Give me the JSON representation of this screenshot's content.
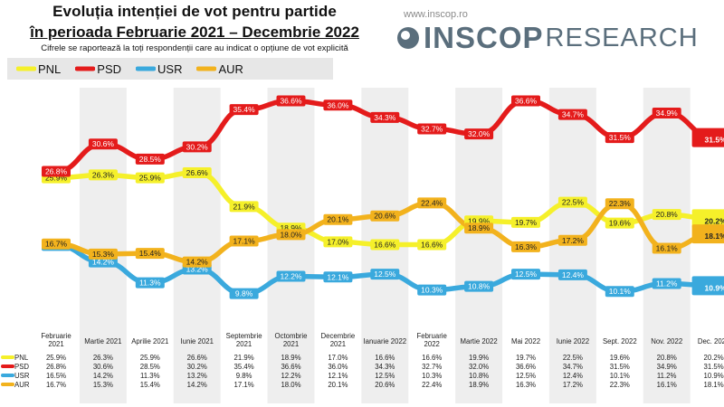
{
  "header": {
    "title_line1": "Evoluția intenției de vot pentru partide",
    "title_line2": "în perioada Februarie 2021 – Decembrie 2022",
    "subtitle": "Cifrele se raportează la toți respondenții care au indicat o opțiune de vot explicită",
    "url": "www.inscop.ro",
    "logo_main": "INSCOP",
    "logo_sub": "RESEARCH",
    "logo_icon": "inscop-circle-logo-icon"
  },
  "colors": {
    "PNL": "#f5f02a",
    "PSD": "#e41b1b",
    "USR": "#3aa9dd",
    "AUR": "#f2b21d"
  },
  "chart_data": {
    "type": "line",
    "categories": [
      "Februarie 2021",
      "Martie 2021",
      "Aprilie 2021",
      "Iunie 2021",
      "Septembrie 2021",
      "Octombrie 2021",
      "Decembrie 2021",
      "Ianuarie 2022",
      "Februarie 2022",
      "Martie 2022",
      "Mai 2022",
      "Iunie 2022",
      "Sept. 2022",
      "Nov. 2022",
      "Dec. 2022"
    ],
    "category_lines": [
      [
        "Februarie",
        "2021"
      ],
      [
        "Martie 2021"
      ],
      [
        "Aprilie 2021"
      ],
      [
        "Iunie 2021"
      ],
      [
        "Septembrie",
        "2021"
      ],
      [
        "Octombrie",
        "2021"
      ],
      [
        "Decembrie",
        "2021"
      ],
      [
        "Ianuarie 2022"
      ],
      [
        "Februarie",
        "2022"
      ],
      [
        "Martie 2022"
      ],
      [
        "Mai 2022"
      ],
      [
        "Iunie 2022"
      ],
      [
        "Sept. 2022"
      ],
      [
        "Nov. 2022"
      ],
      [
        "Dec. 2022"
      ]
    ],
    "series": [
      {
        "name": "PNL",
        "values": [
          25.9,
          26.3,
          25.9,
          26.6,
          21.9,
          18.9,
          17.0,
          16.6,
          16.6,
          19.9,
          19.7,
          22.5,
          19.6,
          20.8,
          20.2
        ]
      },
      {
        "name": "PSD",
        "values": [
          26.8,
          30.6,
          28.5,
          30.2,
          35.4,
          36.6,
          36.0,
          34.3,
          32.7,
          32.0,
          36.6,
          34.7,
          31.5,
          34.9,
          31.5
        ]
      },
      {
        "name": "USR",
        "values": [
          16.5,
          14.2,
          11.3,
          13.2,
          9.8,
          12.2,
          12.1,
          12.5,
          10.3,
          10.8,
          12.5,
          12.4,
          10.1,
          11.2,
          10.9
        ]
      },
      {
        "name": "AUR",
        "values": [
          16.7,
          15.3,
          15.4,
          14.2,
          17.1,
          18.0,
          20.1,
          20.6,
          22.4,
          18.9,
          16.3,
          17.2,
          22.3,
          16.1,
          18.1
        ]
      }
    ],
    "value_labels": {
      "PNL": [
        "25.9%",
        "26.3%",
        "25.9%",
        "26.6%",
        "21.9%",
        "18.9%",
        "17.0%",
        "16.6%",
        "16.6%",
        "19.9%",
        "19.7%",
        "22.5%",
        "19.6%",
        "20.8%",
        "20.2%"
      ],
      "PSD": [
        "26.8%",
        "30.6%",
        "28.5%",
        "30.2%",
        "35.4%",
        "36.6%",
        "36.0%",
        "34.3%",
        "32.7%",
        "32.0%",
        "36.6%",
        "34.7%",
        "31.5%",
        "34.9%",
        "31.5%"
      ],
      "USR": [
        "16.5%",
        "14.2%",
        "11.3%",
        "13.2%",
        "9.8%",
        "12.2%",
        "12.1%",
        "12.5%",
        "10.3%",
        "10.8%",
        "12.5%",
        "12.4%",
        "10.1%",
        "11.2%",
        "10.9%"
      ],
      "AUR": [
        "16.7%",
        "15.3%",
        "15.4%",
        "14.2%",
        "17.1%",
        "18.0%",
        "20.1%",
        "20.6%",
        "22.4%",
        "18.9%",
        "16.3%",
        "17.2%",
        "22.3%",
        "16.1%",
        "18.1%"
      ]
    },
    "grid": false,
    "legend": "top-left"
  }
}
